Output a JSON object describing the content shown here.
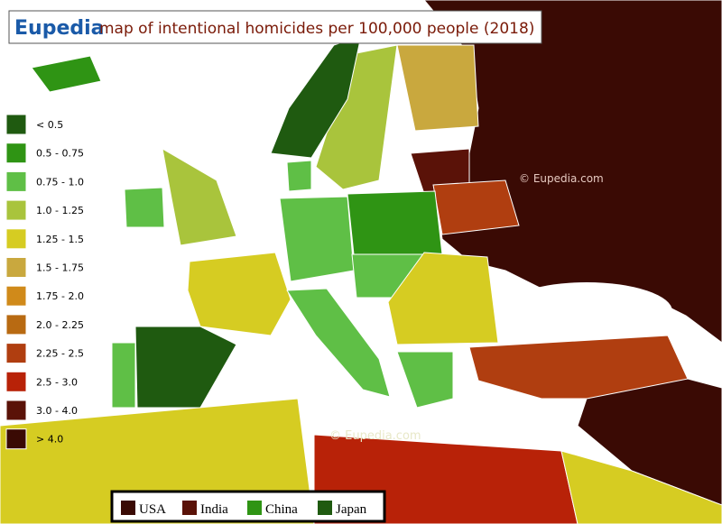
{
  "header": {
    "brand": "Eupedia",
    "title": "map of intentional homicides per 100,000 people (2018)"
  },
  "legend": {
    "items": [
      {
        "label": "< 0.5",
        "color": "#1f5a10"
      },
      {
        "label": "0.5 - 0.75",
        "color": "#2f9414"
      },
      {
        "label": "0.75 - 1.0",
        "color": "#5fbf46"
      },
      {
        "label": "1.0 - 1.25",
        "color": "#a9c43c"
      },
      {
        "label": "1.25 - 1.5",
        "color": "#d6cc22"
      },
      {
        "label": "1.5 - 1.75",
        "color": "#c9a83e"
      },
      {
        "label": "1.75 - 2.0",
        "color": "#d08a1a"
      },
      {
        "label": "2.0 - 2.25",
        "color": "#b86a12"
      },
      {
        "label": "2.25 - 2.5",
        "color": "#b03e10"
      },
      {
        "label": "2.5 - 3.0",
        "color": "#b82208"
      },
      {
        "label": "3.0 - 4.0",
        "color": "#5a1208"
      },
      {
        "label": "> 4.0",
        "color": "#3a0a04"
      }
    ]
  },
  "comparison": {
    "items": [
      {
        "label": "USA",
        "color": "#3a0a04"
      },
      {
        "label": "India",
        "color": "#5a1208"
      },
      {
        "label": "China",
        "color": "#2f9414"
      },
      {
        "label": "Japan",
        "color": "#1f5a10"
      }
    ]
  },
  "watermarks": [
    "© Eupedia.com",
    "©  Eupedia.com"
  ]
}
